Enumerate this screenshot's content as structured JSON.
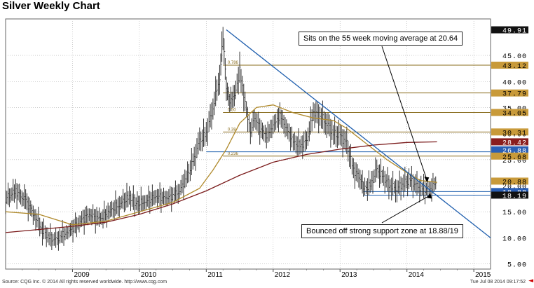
{
  "title": "Silver Weekly Chart",
  "footer": {
    "source": "Source: CQG Inc. © 2014 All rights reserved worldwide. http://www.cqg.com",
    "timestamp": "Tue Jul 08 2014 09:17:52"
  },
  "colors": {
    "price": "#333333",
    "ma_short": "#b08a2c",
    "ma_long": "#7a1a1a",
    "trendline": "#1f5fae",
    "support": "#1f5fae",
    "fib": "#8a6d1e",
    "grid": "#b0b0b0"
  },
  "chart_data": {
    "type": "line",
    "title": "Silver Weekly Chart",
    "xlabel": "",
    "ylabel": "",
    "x_range": [
      2008.0,
      2015.25
    ],
    "ylim": [
      4,
      52
    ],
    "x_ticks": [
      "2009",
      "2010",
      "2011",
      "2012",
      "2013",
      "2014",
      "2015"
    ],
    "y_ticks": [
      {
        "value": 45,
        "label": "45.00"
      },
      {
        "value": 40,
        "label": "40.00"
      },
      {
        "value": 35,
        "label": "35.00"
      },
      {
        "value": 30,
        "label": "30.00"
      },
      {
        "value": 25,
        "label": "25.00"
      },
      {
        "value": 20,
        "label": "20.00"
      },
      {
        "value": 15,
        "label": "15.00"
      },
      {
        "value": 10,
        "label": "10.00"
      },
      {
        "value": 5,
        "label": "5.00"
      }
    ],
    "series": [
      {
        "name": "Price (weekly)",
        "x": [
          2008.0,
          2008.15,
          2008.3,
          2008.45,
          2008.55,
          2008.65,
          2008.75,
          2008.85,
          2008.95,
          2009.1,
          2009.25,
          2009.4,
          2009.55,
          2009.7,
          2009.85,
          2009.95,
          2010.1,
          2010.25,
          2010.4,
          2010.5,
          2010.6,
          2010.7,
          2010.8,
          2010.9,
          2011.0,
          2011.1,
          2011.2,
          2011.25,
          2011.3,
          2011.35,
          2011.42,
          2011.5,
          2011.58,
          2011.66,
          2011.72,
          2011.8,
          2011.9,
          2012.0,
          2012.1,
          2012.2,
          2012.3,
          2012.4,
          2012.5,
          2012.6,
          2012.7,
          2012.8,
          2012.9,
          2013.0,
          2013.1,
          2013.2,
          2013.3,
          2013.35,
          2013.45,
          2013.55,
          2013.65,
          2013.75,
          2013.85,
          2013.95,
          2014.05,
          2014.15,
          2014.25,
          2014.35,
          2014.45
        ],
        "values": [
          17.5,
          19.0,
          17.0,
          14.0,
          11.5,
          10.0,
          9.5,
          10.5,
          11.2,
          13.0,
          14.5,
          13.5,
          15.0,
          16.5,
          17.8,
          16.5,
          17.0,
          18.0,
          17.5,
          18.2,
          19.0,
          21.5,
          24.5,
          28.5,
          30.0,
          35.0,
          41.0,
          48.5,
          39.0,
          36.0,
          37.0,
          42.0,
          36.0,
          30.5,
          33.0,
          31.0,
          29.5,
          31.5,
          33.5,
          31.0,
          28.5,
          27.5,
          28.5,
          34.0,
          33.5,
          32.0,
          30.0,
          29.5,
          28.0,
          23.0,
          21.5,
          19.5,
          20.0,
          23.0,
          21.5,
          20.0,
          19.5,
          20.5,
          21.0,
          19.8,
          19.3,
          19.5,
          20.8
        ]
      },
      {
        "name": "55-week moving average",
        "x": [
          2008.0,
          2008.5,
          2009.0,
          2009.5,
          2010.0,
          2010.5,
          2010.9,
          2011.1,
          2011.3,
          2011.5,
          2011.75,
          2012.0,
          2012.3,
          2012.6,
          2012.9,
          2013.1,
          2013.4,
          2013.7,
          2014.0,
          2014.2,
          2014.45
        ],
        "values": [
          15.0,
          14.5,
          12.5,
          13.2,
          15.0,
          16.8,
          19.5,
          23.0,
          27.0,
          32.0,
          35.0,
          35.5,
          34.0,
          33.0,
          32.5,
          31.0,
          28.0,
          25.0,
          22.5,
          21.0,
          20.64
        ]
      },
      {
        "name": "Long-term moving average",
        "x": [
          2008.0,
          2008.5,
          2009.0,
          2009.5,
          2010.0,
          2010.5,
          2011.0,
          2011.5,
          2012.0,
          2012.5,
          2013.0,
          2013.5,
          2014.0,
          2014.45
        ],
        "values": [
          11.0,
          11.6,
          12.2,
          13.0,
          14.5,
          16.5,
          19.0,
          22.0,
          24.5,
          26.0,
          27.0,
          27.8,
          28.3,
          28.42
        ]
      }
    ],
    "trendline": {
      "name": "Downtrend resistance",
      "x": [
        2011.3,
        2015.25
      ],
      "values": [
        49.91,
        10.0
      ]
    },
    "support_zone": {
      "low": 18.19,
      "high": 18.88,
      "x_start": 2013.35,
      "x_end": 2014.45
    },
    "horizontal_levels": [
      {
        "label": "0.786",
        "value": 43.12
      },
      {
        "label": "",
        "value": 37.79
      },
      {
        "label": "0.50",
        "value": 34.05
      },
      {
        "label": "0.38",
        "value": 30.31
      },
      {
        "label": "0.236",
        "value": 25.68
      }
    ],
    "support_line": {
      "value": 26.5,
      "x_start": 2011.0
    },
    "price_tags": [
      {
        "value": 49.91,
        "label": "49.91",
        "bg": "#111111",
        "fg": "#ffffff"
      },
      {
        "value": 43.12,
        "label": "43.12",
        "bg": "#c89a3a",
        "fg": "#000000"
      },
      {
        "value": 37.79,
        "label": "37.79",
        "bg": "#c89a3a",
        "fg": "#000000"
      },
      {
        "value": 34.05,
        "label": "34.05",
        "bg": "#c89a3a",
        "fg": "#000000"
      },
      {
        "value": 30.31,
        "label": "30.31",
        "bg": "#c89a3a",
        "fg": "#000000"
      },
      {
        "value": 28.42,
        "label": "28.42",
        "bg": "#8a1d1d",
        "fg": "#ffffff"
      },
      {
        "value": 26.88,
        "label": "26.88",
        "bg": "#2a5fb5",
        "fg": "#ffffff"
      },
      {
        "value": 25.68,
        "label": "25.68",
        "bg": "#c89a3a",
        "fg": "#000000"
      },
      {
        "value": 20.88,
        "label": "20.88",
        "bg": "#c89a3a",
        "fg": "#000000"
      },
      {
        "value": 18.88,
        "label": "18.88",
        "bg": "#2a5fb5",
        "fg": "#ffffff"
      },
      {
        "value": 18.19,
        "label": "18.19",
        "bg": "#111111",
        "fg": "#ffffff"
      }
    ],
    "annotations": [
      {
        "text": "Sits on the 55 week moving average at 20.64",
        "target_x": 2014.3,
        "target_y": 20.64
      },
      {
        "text": "Bounced off strong support zone at 18.88/19",
        "target_x": 2014.35,
        "target_y": 18.6
      }
    ]
  }
}
